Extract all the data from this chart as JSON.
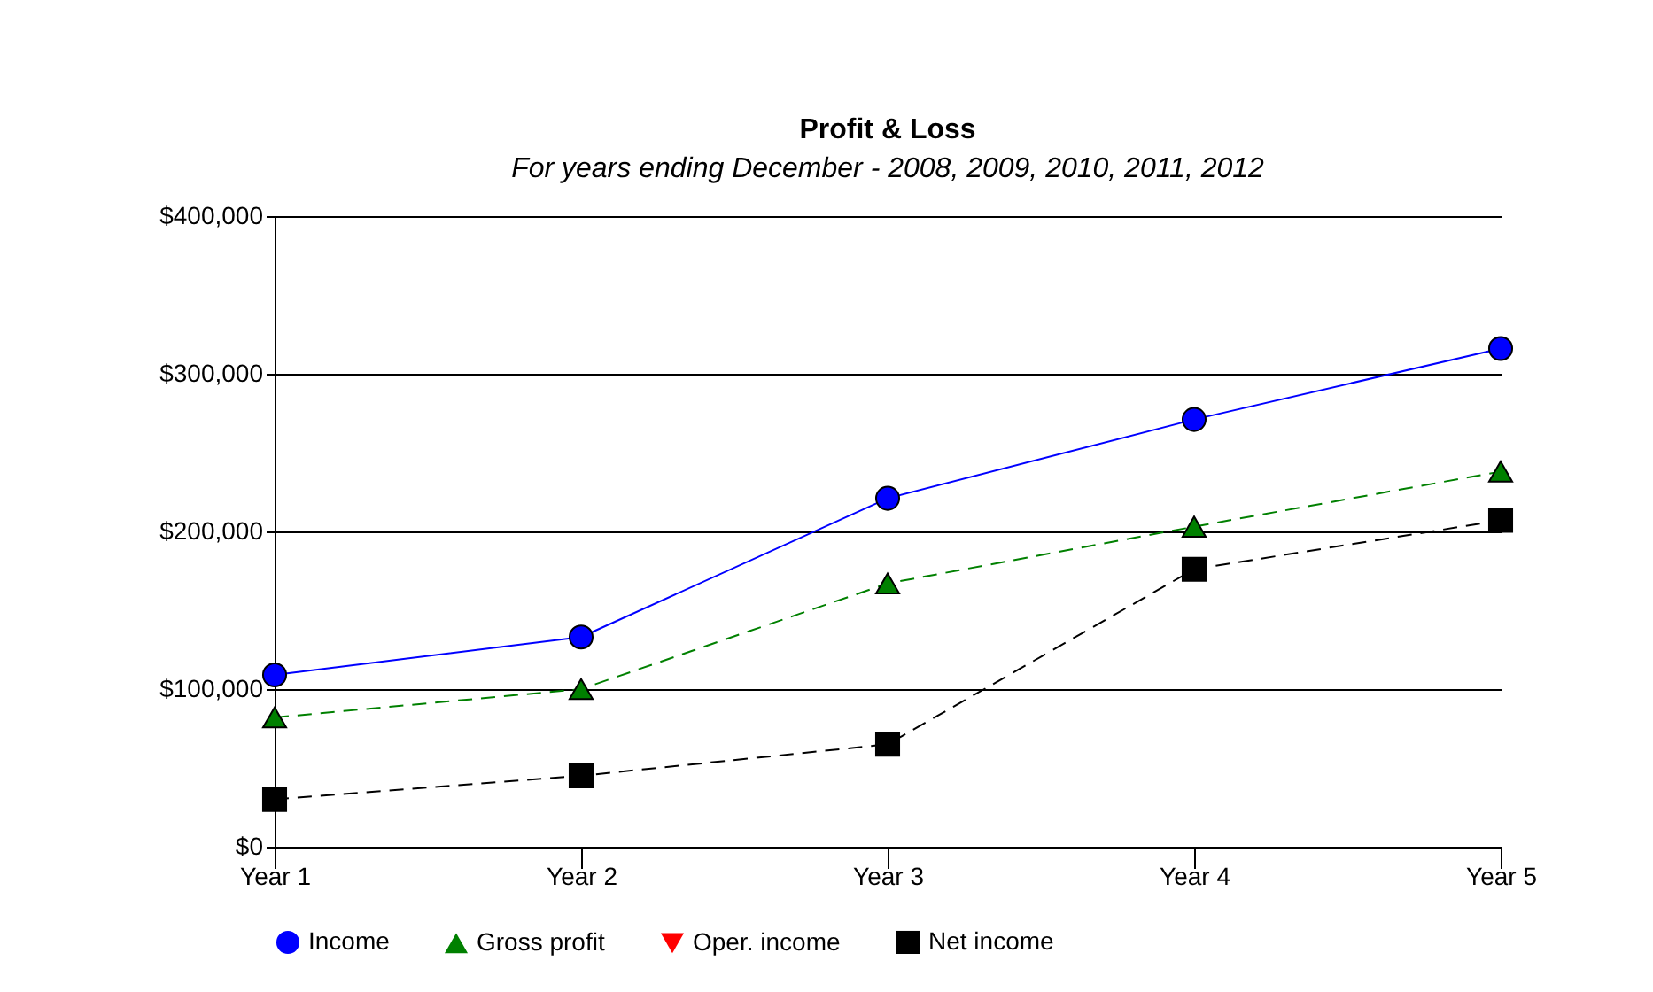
{
  "chart_data": {
    "type": "line",
    "title": "Profit & Loss",
    "subtitle": "For years ending December - 2008, 2009, 2010, 2011, 2012",
    "categories": [
      "Year 1",
      "Year 2",
      "Year 3",
      "Year 4",
      "Year 5"
    ],
    "series": [
      {
        "name": "Income",
        "color": "#0000ff",
        "marker": "circle",
        "line_style": "solid",
        "values": [
          109000,
          133000,
          221000,
          271000,
          316000
        ]
      },
      {
        "name": "Gross profit",
        "color": "#008000",
        "marker": "triangle",
        "line_style": "dashed",
        "values": [
          82000,
          100000,
          167000,
          203000,
          238000
        ]
      },
      {
        "name": "Oper. income",
        "color": "#ff0000",
        "marker": "triangle-down",
        "line_style": "dashed",
        "values": [
          null,
          null,
          null,
          null,
          null
        ]
      },
      {
        "name": "Net income",
        "color": "#000000",
        "marker": "square",
        "line_style": "dashed",
        "values": [
          30000,
          45000,
          65000,
          176000,
          207000
        ]
      }
    ],
    "ylim": [
      0,
      400000
    ],
    "yticks": [
      {
        "value": 0,
        "label": "$0"
      },
      {
        "value": 100000,
        "label": "$100,000"
      },
      {
        "value": 200000,
        "label": "$200,000"
      },
      {
        "value": 300000,
        "label": "$300,000"
      },
      {
        "value": 400000,
        "label": "$400,000"
      }
    ],
    "grid": "y",
    "legend": "bottom"
  }
}
